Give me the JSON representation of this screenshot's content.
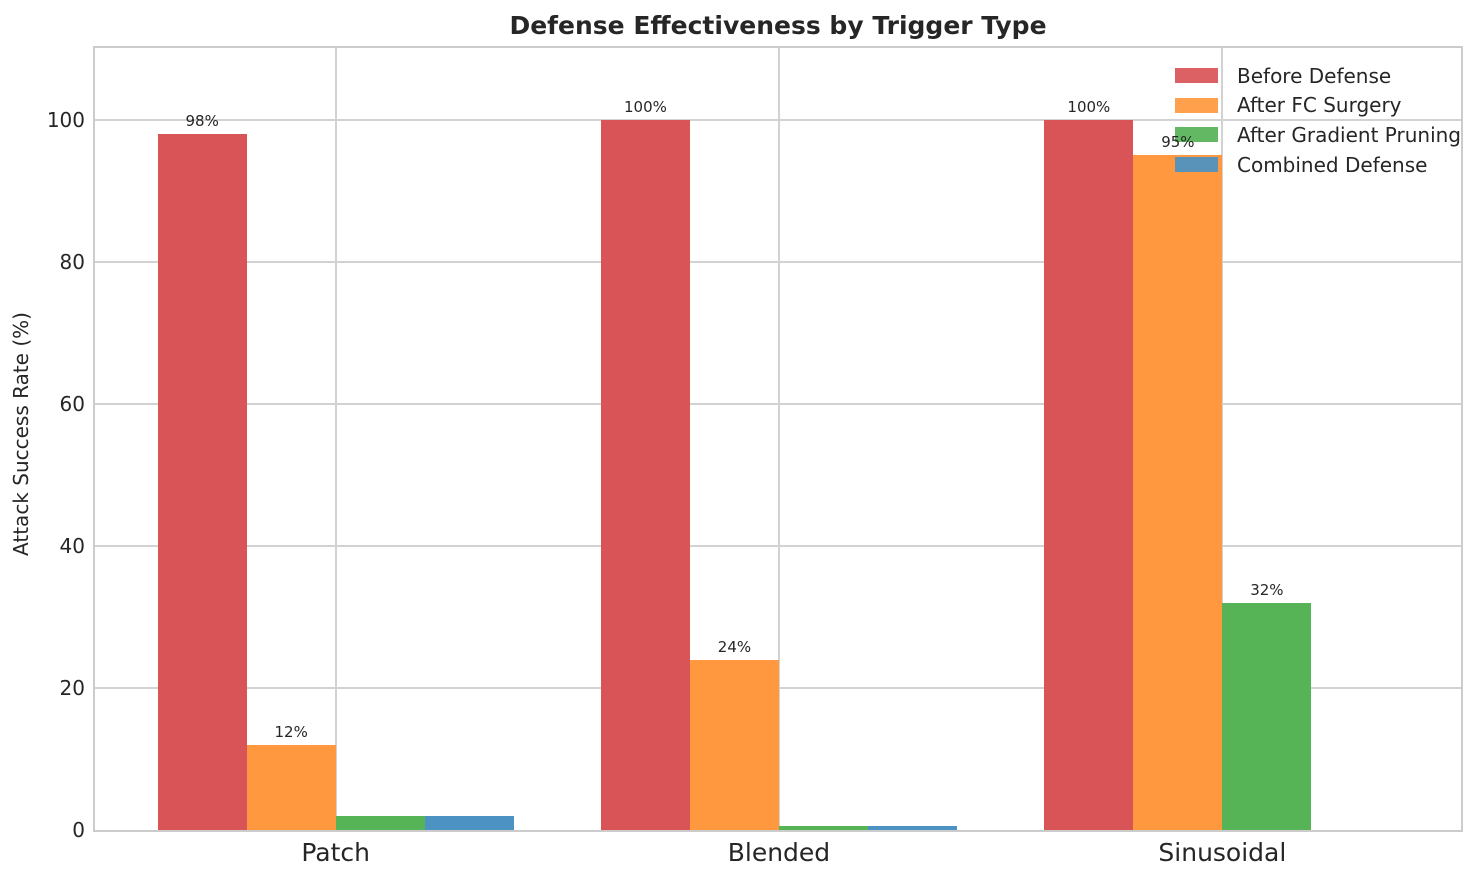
{
  "chart_data": {
    "type": "bar",
    "title": "Defense Effectiveness by Trigger Type",
    "xlabel": "",
    "ylabel": "Attack Success Rate (%)",
    "categories": [
      "Patch",
      "Blended",
      "Sinusoidal"
    ],
    "yticks": [
      0,
      20,
      40,
      60,
      80,
      100
    ],
    "ylim": [
      0,
      110
    ],
    "grid": true,
    "legend_position": "upper right",
    "series": [
      {
        "name": "Before Defense",
        "color": "#d95457",
        "values": [
          98,
          100,
          100
        ],
        "labels": [
          "98%",
          "100%",
          "100%"
        ]
      },
      {
        "name": "After FC Surgery",
        "color": "#ff983e",
        "values": [
          12,
          24,
          95
        ],
        "labels": [
          "12%",
          "24%",
          "95%"
        ]
      },
      {
        "name": "After Gradient Pruning",
        "color": "#56b356",
        "values": [
          2,
          0.5,
          32
        ],
        "labels": [
          null,
          null,
          "32%"
        ]
      },
      {
        "name": "Combined Defense",
        "color": "#4c92c3",
        "values": [
          2,
          0.5,
          0
        ],
        "labels": [
          null,
          null,
          null
        ]
      }
    ]
  }
}
